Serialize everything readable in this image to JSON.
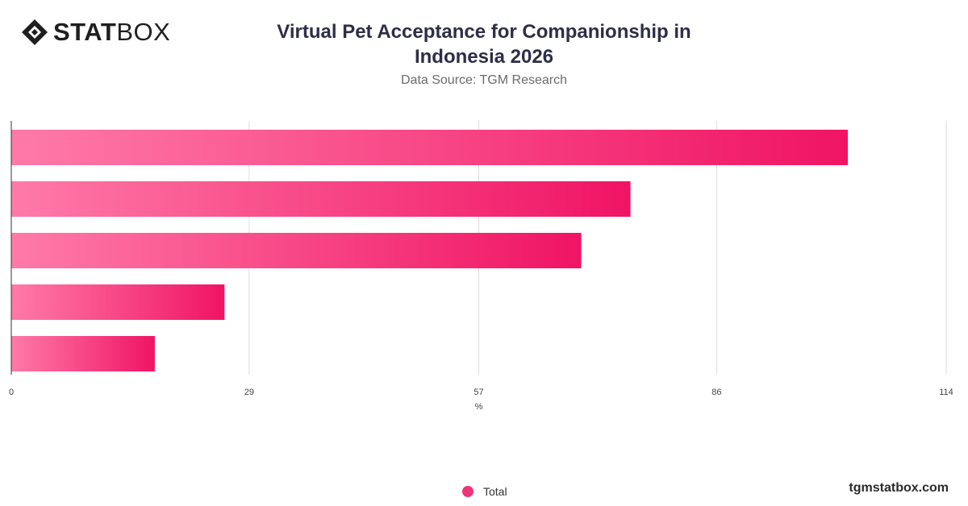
{
  "brand": {
    "logo_bold": "STAT",
    "logo_light": "BOX",
    "site": "tgmstatbox.com"
  },
  "header": {
    "title_line1": "Virtual Pet Acceptance for Companionship in",
    "title_line2": "Indonesia 2026",
    "source": "Data Source: TGM Research"
  },
  "legend": {
    "label": "Total",
    "color": "#f0347a"
  },
  "colors": {
    "bar_start": "#ff7aa8",
    "bar_end": "#f01464",
    "grid": "#dddddd",
    "axis": "#333333"
  },
  "chart_data": {
    "type": "bar",
    "orientation": "horizontal",
    "xlabel": "%",
    "xlim": [
      0,
      114
    ],
    "ticks": [
      0,
      29,
      57,
      86,
      114
    ],
    "series": [
      {
        "name": "Total",
        "values": [
          102,
          75.5,
          69.5,
          26,
          17.5
        ]
      }
    ]
  }
}
